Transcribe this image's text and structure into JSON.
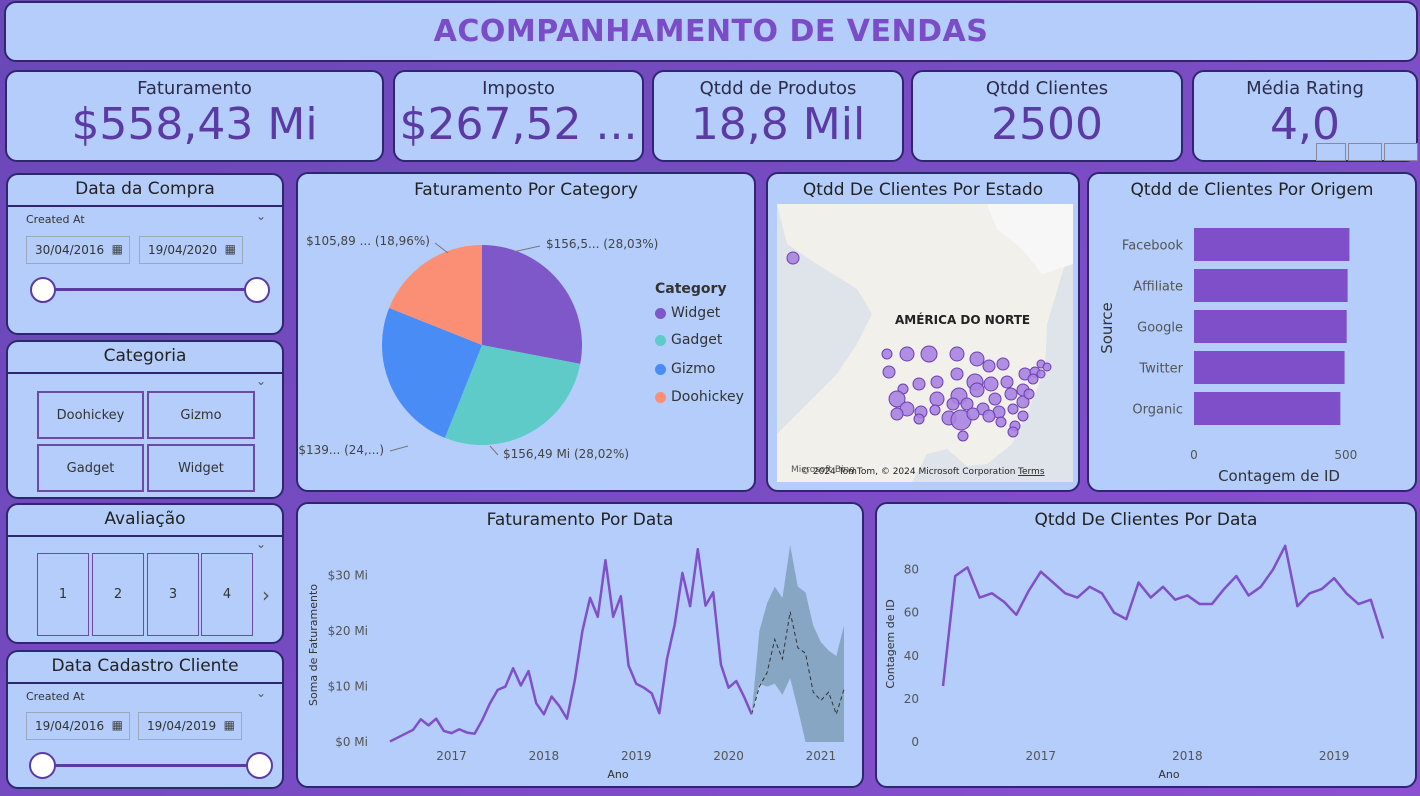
{
  "title": "ACOMPANHAMENTO DE VENDAS",
  "kpis": [
    {
      "label": "Faturamento",
      "value": "$558,43 Mi"
    },
    {
      "label": "Imposto",
      "value": "$267,52 ..."
    },
    {
      "label": "Qtdd de Produtos",
      "value": "18,8 Mil"
    },
    {
      "label": "Qtdd Clientes",
      "value": "2500"
    },
    {
      "label": "Média Rating",
      "value": "4,0"
    }
  ],
  "slicer_purchase": {
    "title": "Data da Compra",
    "field": "Created At",
    "from": "30/04/2016",
    "to": "19/04/2020"
  },
  "slicer_category": {
    "title": "Categoria",
    "items": [
      "Doohickey",
      "Gizmo",
      "Gadget",
      "Widget"
    ]
  },
  "slicer_rating": {
    "title": "Avaliação",
    "items": [
      "1",
      "2",
      "3",
      "4"
    ]
  },
  "slicer_signup": {
    "title": "Data Cadastro Cliente",
    "field": "Created At",
    "from": "19/04/2016",
    "to": "19/04/2019"
  },
  "pie": {
    "title": "Faturamento Por Category",
    "legend_title": "Category",
    "slices": [
      {
        "name": "Widget",
        "pct": 28.03,
        "label": "$156,5... (28,03%)",
        "color": "#7e57c8"
      },
      {
        "name": "Gadget",
        "pct": 28.02,
        "label": "$156,49 Mi (28,02%)",
        "color": "#5ecbc8"
      },
      {
        "name": "Gizmo",
        "pct": 24.99,
        "label": "$139... (24,...)",
        "color": "#4a8cf5"
      },
      {
        "name": "Doohickey",
        "pct": 18.96,
        "label": "$105,89 ... (18,96%)",
        "color": "#fb8f75"
      }
    ]
  },
  "map": {
    "title": "Qtdd De Clientes Por Estado",
    "region_label": "AMÉRICA DO NORTE",
    "credits": "© 2024 TomTom, © 2024 Microsoft Corporation",
    "terms": "Terms",
    "brand": "Microsoft Bing"
  },
  "origin_chart": {
    "title": "Qtdd de Clientes Por Origem",
    "ylabel": "Source",
    "xlabel": "Contagem de ID",
    "ticks": [
      "0",
      "500"
    ]
  },
  "revenue_chart": {
    "title": "Faturamento Por Data",
    "ylabel": "Soma de Faturamento",
    "xlabel": "Ano",
    "yticks": [
      "$0 Mi",
      "$10 Mi",
      "$20 Mi",
      "$30 Mi"
    ],
    "xticks": [
      "2017",
      "2018",
      "2019",
      "2020",
      "2021"
    ]
  },
  "clients_chart": {
    "title": "Qtdd De Clientes Por Data",
    "ylabel": "Contagem de ID",
    "xlabel": "Ano",
    "yticks": [
      "0",
      "20",
      "40",
      "60",
      "80"
    ],
    "xticks": [
      "2017",
      "2018",
      "2019"
    ]
  },
  "chart_data": [
    {
      "type": "pie",
      "title": "Faturamento Por Category",
      "categories": [
        "Widget",
        "Gadget",
        "Gizmo",
        "Doohickey"
      ],
      "values": [
        156.5,
        156.49,
        139.5,
        105.89
      ],
      "unit": "Mi"
    },
    {
      "type": "bar",
      "title": "Qtdd de Clientes Por Origem",
      "categories": [
        "Facebook",
        "Affiliate",
        "Google",
        "Twitter",
        "Organic"
      ],
      "values": [
        512,
        506,
        503,
        496,
        482
      ],
      "xlabel": "Contagem de ID",
      "ylabel": "Source",
      "xlim": [
        0,
        560
      ]
    },
    {
      "type": "line",
      "title": "Faturamento Por Data",
      "xlabel": "Ano",
      "ylabel": "Soma de Faturamento",
      "ylim": [
        0,
        35
      ],
      "x": [
        "2016-05",
        "2016-06",
        "2016-07",
        "2016-08",
        "2016-09",
        "2016-10",
        "2016-11",
        "2016-12",
        "2017-01",
        "2017-02",
        "2017-03",
        "2017-04",
        "2017-05",
        "2017-06",
        "2017-07",
        "2017-08",
        "2017-09",
        "2017-10",
        "2017-11",
        "2017-12",
        "2018-01",
        "2018-02",
        "2018-03",
        "2018-04",
        "2018-05",
        "2018-06",
        "2018-07",
        "2018-08",
        "2018-09",
        "2018-10",
        "2018-11",
        "2018-12",
        "2019-01",
        "2019-02",
        "2019-03",
        "2019-04",
        "2019-05",
        "2019-06",
        "2019-07",
        "2019-08",
        "2019-09",
        "2019-10",
        "2019-11",
        "2019-12",
        "2020-01",
        "2020-02",
        "2020-03",
        "2020-04"
      ],
      "series": [
        {
          "values": [
            0.1,
            0.8,
            1.5,
            2.2,
            4.1,
            3.0,
            4.2,
            2.0,
            1.6,
            2.3,
            1.7,
            1.5,
            4.0,
            7.0,
            9.4,
            10.0,
            13.3,
            10.2,
            12.8,
            7.0,
            5.0,
            8.2,
            6.5,
            4.2,
            11.0,
            20.0,
            26.0,
            22.6,
            32.8,
            22.6,
            26.3,
            13.8,
            10.5,
            9.8,
            8.8,
            5.2,
            15.0,
            21.2,
            30.5,
            24.5,
            34.8,
            24.6,
            27.0,
            14.0,
            9.8,
            11.0,
            8.2,
            5.0
          ]
        }
      ],
      "forecast": {
        "x": [
          "2020-05",
          "2020-06",
          "2020-07",
          "2020-08",
          "2020-09",
          "2020-10",
          "2020-11",
          "2020-12",
          "2021-01",
          "2021-02",
          "2021-03",
          "2021-04"
        ],
        "values": [
          10.0,
          12.5,
          18.5,
          15.0,
          23.5,
          17.0,
          16.0,
          9.0,
          7.5,
          9.0,
          5.0,
          9.5
        ],
        "upper": [
          20.0,
          25.0,
          28.0,
          26.0,
          35.5,
          28.0,
          27.0,
          21.0,
          18.0,
          16.5,
          15.5,
          21.0
        ],
        "lower": [
          10.5,
          10.0,
          10.5,
          8.5,
          11.5,
          6.0,
          0.0,
          0.0,
          0.0,
          0.0,
          0.0,
          0.0
        ]
      }
    },
    {
      "type": "line",
      "title": "Qtdd De Clientes Por Data",
      "xlabel": "Ano",
      "ylabel": "Contagem de ID",
      "ylim": [
        0,
        90
      ],
      "x": [
        "2016-05",
        "2016-06",
        "2016-07",
        "2016-08",
        "2016-09",
        "2016-10",
        "2016-11",
        "2016-12",
        "2017-01",
        "2017-02",
        "2017-03",
        "2017-04",
        "2017-05",
        "2017-06",
        "2017-07",
        "2017-08",
        "2017-09",
        "2017-10",
        "2017-11",
        "2017-12",
        "2018-01",
        "2018-02",
        "2018-03",
        "2018-04",
        "2018-05",
        "2018-06",
        "2018-07",
        "2018-08",
        "2018-09",
        "2018-10",
        "2018-11",
        "2018-12",
        "2019-01",
        "2019-02",
        "2019-03",
        "2019-04",
        "2019-05"
      ],
      "series": [
        {
          "values": [
            26,
            77,
            81,
            67,
            69,
            65,
            59,
            70,
            79,
            74,
            69,
            67,
            72,
            69,
            60,
            57,
            74,
            67,
            72,
            66,
            68,
            64,
            64,
            71,
            77,
            68,
            72,
            80,
            91,
            63,
            69,
            71,
            76,
            69,
            64,
            66,
            48
          ]
        }
      ]
    }
  ]
}
